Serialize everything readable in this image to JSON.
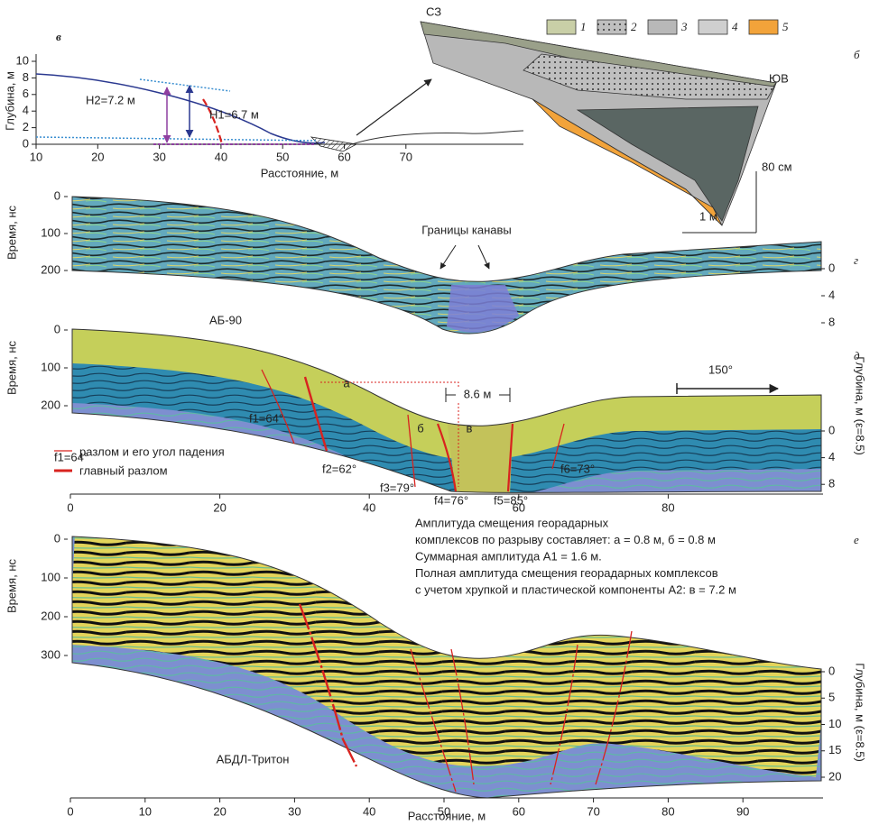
{
  "panel_labels": {
    "v": "в",
    "b": "б",
    "g": "г",
    "d": "д",
    "e": "е"
  },
  "depth_profile": {
    "y_label": "Глубина, м",
    "x_label": "Расстояние, м",
    "xticks": [
      10,
      20,
      30,
      40,
      50,
      60,
      70
    ],
    "yticks": [
      0,
      2,
      4,
      6,
      8,
      10
    ],
    "h2": "H2=7.2 м",
    "h1": "H1=6.7 м"
  },
  "section": {
    "nw": "СЗ",
    "se": "ЮВ",
    "legend": [
      "1",
      "2",
      "3",
      "4",
      "5"
    ],
    "scale_v": "80 см",
    "scale_h": "1 м"
  },
  "radargram_ab90": {
    "time_label": "Время, нс",
    "time_ticks": [
      0,
      100,
      200
    ],
    "depth_ticks": [
      0,
      4,
      8
    ],
    "name": "АБ-90",
    "ditch_label": "Границы канавы"
  },
  "radargram_ab90_interp": {
    "time_label": "Время, нс",
    "time_ticks": [
      0,
      100,
      200
    ],
    "depth_ticks": [
      0,
      4,
      8
    ],
    "depth_label": "Глубина, м (ε=8.5)",
    "distance_ticks": [
      0,
      20,
      40,
      60,
      80
    ],
    "azimuth": "150°",
    "width": "8.6 м",
    "blocks": [
      "а",
      "б",
      "в"
    ],
    "faults": [
      "f1=64°",
      "f2=62°",
      "f3=79°",
      "f4=76°",
      "f5=85°",
      "f6=73°"
    ],
    "legend": {
      "sample": "f1=64°",
      "fault": "разлом и его угол падения",
      "main_fault": "главный разлом"
    }
  },
  "amplitude_note": [
    "Амплитуда смещения георадарных",
    "комплексов по разрыву составляет: а = 0.8 м, б = 0.8 м",
    "Суммарная амплитуда A1 = 1.6 м.",
    "Полная амплитуда смещения георадарных комплексов",
    "с учетом хрупкой и пластической компоненты A2: в = 7.2 м"
  ],
  "radargram_triton": {
    "time_label": "Время, нс",
    "time_ticks": [
      0,
      100,
      200,
      300
    ],
    "depth_ticks": [
      0,
      5,
      10,
      15,
      20
    ],
    "depth_label": "Глубина, м (ε=8.5)",
    "distance_ticks": [
      0,
      10,
      20,
      30,
      40,
      50,
      60,
      70,
      80,
      90
    ],
    "distance_label": "Расстояние, м",
    "name": "АБДЛ-Тритон"
  }
}
